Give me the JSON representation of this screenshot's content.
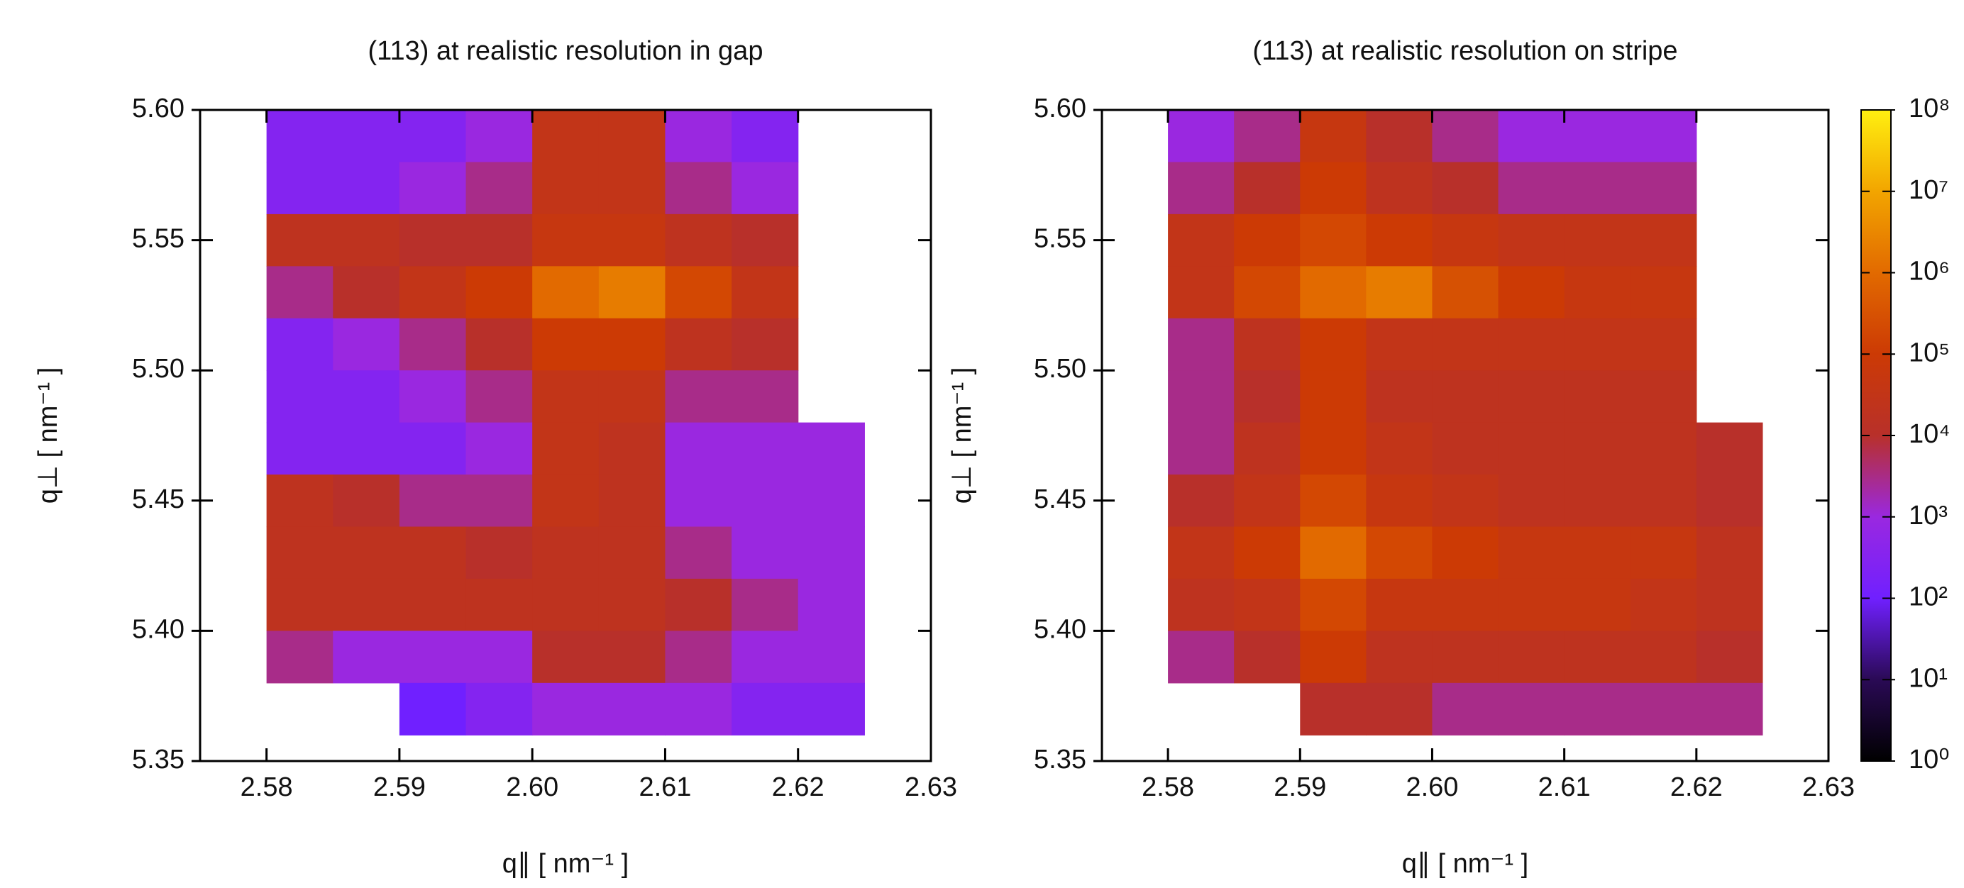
{
  "chart_data": [
    {
      "type": "heatmap",
      "title": "(113) at realistic resolution in gap",
      "xlabel": "q∥ [ nm⁻¹ ]",
      "ylabel": "q⊥ [ nm⁻¹ ]",
      "xlim": [
        2.575,
        2.63
      ],
      "xticks": [
        2.58,
        2.59,
        {
          "value": 2.6,
          "label": "2.60"
        },
        2.61,
        2.62,
        2.63
      ],
      "ylim": [
        5.35,
        5.6
      ],
      "yticks": [
        5.35,
        {
          "value": 5.4,
          "label": "5.40"
        },
        5.45,
        {
          "value": 5.5,
          "label": "5.50"
        },
        5.55,
        {
          "value": 5.6,
          "label": "5.60"
        }
      ],
      "zlim": [
        1,
        100000000.0
      ],
      "zlog": true,
      "colorscale": [
        "#000000",
        "#2a0a55",
        "#7020ff",
        "#9a28e0",
        "#b8302a",
        "#cc3a05",
        "#e26a00",
        "#f2a500",
        "#ffef10"
      ],
      "x": [
        2.5825,
        2.5875,
        2.5925,
        2.5975,
        2.6025,
        2.6075,
        2.6125,
        2.6175,
        2.6225
      ],
      "y": [
        5.59,
        5.57,
        5.55,
        5.53,
        5.51,
        5.49,
        5.47,
        5.45,
        5.43,
        5.41,
        5.39,
        5.37
      ],
      "z": [
        [
          300.0,
          300.0,
          300.0,
          1000.0,
          30000.0,
          30000.0,
          1000.0,
          300.0,
          null
        ],
        [
          300.0,
          300.0,
          1000.0,
          3000.0,
          30000.0,
          30000.0,
          3000.0,
          1000.0,
          null
        ],
        [
          20000.0,
          20000.0,
          10000.0,
          10000.0,
          50000.0,
          50000.0,
          20000.0,
          10000.0,
          null
        ],
        [
          3000.0,
          10000.0,
          30000.0,
          100000.0,
          1000000.0,
          2000000.0,
          200000.0,
          30000.0,
          null
        ],
        [
          300.0,
          1000.0,
          3000.0,
          10000.0,
          100000.0,
          100000.0,
          20000.0,
          10000.0,
          null
        ],
        [
          300.0,
          300.0,
          1000.0,
          3000.0,
          30000.0,
          30000.0,
          3000.0,
          3000.0,
          null
        ],
        [
          300.0,
          300.0,
          300.0,
          1000.0,
          30000.0,
          20000.0,
          1000.0,
          1000.0,
          1000.0
        ],
        [
          20000.0,
          10000.0,
          3000.0,
          3000.0,
          30000.0,
          20000.0,
          1000.0,
          1000.0,
          1000.0
        ],
        [
          20000.0,
          20000.0,
          20000.0,
          10000.0,
          20000.0,
          20000.0,
          3000.0,
          1000.0,
          1000.0
        ],
        [
          20000.0,
          20000.0,
          20000.0,
          20000.0,
          20000.0,
          20000.0,
          10000.0,
          3000.0,
          1000.0
        ],
        [
          3000.0,
          1000.0,
          1000.0,
          1000.0,
          10000.0,
          10000.0,
          3000.0,
          1000.0,
          1000.0
        ],
        [
          null,
          null,
          100.0,
          300.0,
          1000.0,
          1000.0,
          1000.0,
          300.0,
          300.0
        ]
      ]
    },
    {
      "type": "heatmap",
      "title": "(113) at realistic resolution on stripe",
      "xlabel": "q∥ [ nm⁻¹ ]",
      "ylabel": "q⊥ [ nm⁻¹ ]",
      "xlim": [
        2.575,
        2.63
      ],
      "xticks": [
        2.58,
        2.59,
        {
          "value": 2.6,
          "label": "2.60"
        },
        2.61,
        2.62,
        2.63
      ],
      "ylim": [
        5.35,
        5.6
      ],
      "yticks": [
        5.35,
        {
          "value": 5.4,
          "label": "5.40"
        },
        5.45,
        {
          "value": 5.5,
          "label": "5.50"
        },
        5.55,
        {
          "value": 5.6,
          "label": "5.60"
        }
      ],
      "zlim": [
        1,
        100000000.0
      ],
      "zlog": true,
      "colorscale": [
        "#000000",
        "#2a0a55",
        "#7020ff",
        "#9a28e0",
        "#b8302a",
        "#cc3a05",
        "#e26a00",
        "#f2a500",
        "#ffef10"
      ],
      "zticks": [
        {
          "value": 1,
          "label": "10⁰"
        },
        {
          "value": 10,
          "label": "10¹"
        },
        {
          "value": 100,
          "label": "10²"
        },
        {
          "value": 1000,
          "label": "10³"
        },
        {
          "value": 10000,
          "label": "10⁴"
        },
        {
          "value": 100000,
          "label": "10⁵"
        },
        {
          "value": 1000000,
          "label": "10⁶"
        },
        {
          "value": 10000000,
          "label": "10⁷"
        },
        {
          "value": 100000000,
          "label": "10⁸"
        }
      ],
      "x": [
        2.5825,
        2.5875,
        2.5925,
        2.5975,
        2.6025,
        2.6075,
        2.6125,
        2.6175,
        2.6225
      ],
      "y": [
        5.59,
        5.57,
        5.55,
        5.53,
        5.51,
        5.49,
        5.47,
        5.45,
        5.43,
        5.41,
        5.39,
        5.37
      ],
      "z": [
        [
          1000.0,
          3000.0,
          50000.0,
          10000.0,
          3000.0,
          1000.0,
          1000.0,
          1000.0,
          null
        ],
        [
          3000.0,
          10000.0,
          100000.0,
          20000.0,
          10000.0,
          3000.0,
          3000.0,
          3000.0,
          null
        ],
        [
          30000.0,
          100000.0,
          200000.0,
          100000.0,
          50000.0,
          30000.0,
          30000.0,
          30000.0,
          null
        ],
        [
          30000.0,
          200000.0,
          1000000.0,
          2000000.0,
          300000.0,
          100000.0,
          50000.0,
          50000.0,
          null
        ],
        [
          3000.0,
          20000.0,
          100000.0,
          30000.0,
          30000.0,
          30000.0,
          30000.0,
          30000.0,
          null
        ],
        [
          3000.0,
          10000.0,
          100000.0,
          20000.0,
          20000.0,
          20000.0,
          20000.0,
          20000.0,
          null
        ],
        [
          3000.0,
          20000.0,
          100000.0,
          30000.0,
          20000.0,
          20000.0,
          20000.0,
          20000.0,
          10000.0
        ],
        [
          10000.0,
          30000.0,
          200000.0,
          50000.0,
          30000.0,
          20000.0,
          20000.0,
          20000.0,
          10000.0
        ],
        [
          30000.0,
          100000.0,
          1000000.0,
          200000.0,
          100000.0,
          50000.0,
          50000.0,
          50000.0,
          20000.0
        ],
        [
          20000.0,
          30000.0,
          200000.0,
          50000.0,
          50000.0,
          50000.0,
          50000.0,
          30000.0,
          20000.0
        ],
        [
          3000.0,
          10000.0,
          100000.0,
          20000.0,
          20000.0,
          20000.0,
          20000.0,
          20000.0,
          10000.0
        ],
        [
          null,
          null,
          10000.0,
          10000.0,
          3000.0,
          3000.0,
          3000.0,
          3000.0,
          3000.0
        ]
      ]
    }
  ]
}
